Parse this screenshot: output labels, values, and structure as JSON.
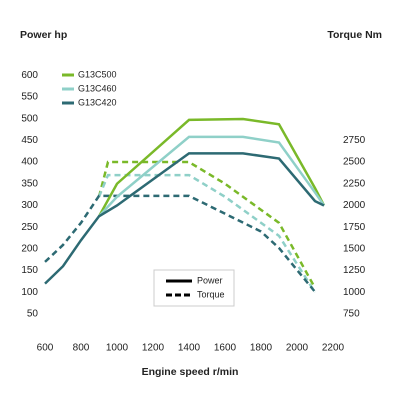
{
  "chart_data": {
    "type": "line",
    "y_title": "Power hp",
    "y2_title": "Torque Nm",
    "x_title": "Engine speed r/min",
    "xlim": [
      600,
      2200
    ],
    "xticks": [
      600,
      800,
      1000,
      1200,
      1400,
      1600,
      1800,
      2000,
      2200
    ],
    "ylim": [
      0,
      650
    ],
    "yticks": [
      50,
      100,
      150,
      200,
      250,
      300,
      350,
      400,
      450,
      500,
      550,
      600
    ],
    "y2lim": [
      500,
      3750
    ],
    "y2ticks": [
      750,
      1000,
      1250,
      1500,
      1750,
      2000,
      2250,
      2500,
      2750
    ],
    "style_labels": [
      "Power",
      "Torque"
    ],
    "series": [
      {
        "name": "G13C500",
        "color": "#7ab929",
        "x": [
          900,
          1000,
          1400,
          1700,
          1900,
          2100,
          2150
        ],
        "values": [
          275,
          350,
          497,
          499,
          487,
          340,
          300
        ],
        "torque_x": [
          900,
          950,
          1400,
          1600,
          1900,
          2100
        ],
        "torque": [
          2100,
          2500,
          2500,
          2250,
          1800,
          1050
        ]
      },
      {
        "name": "G13C460",
        "color": "#8fd0c8",
        "x": [
          900,
          1000,
          1400,
          1700,
          1900,
          2100,
          2150
        ],
        "values": [
          275,
          320,
          458,
          458,
          445,
          330,
          300
        ],
        "torque_x": [
          900,
          950,
          1400,
          1600,
          1900,
          2100
        ],
        "torque": [
          2100,
          2350,
          2350,
          2100,
          1650,
          1000
        ]
      },
      {
        "name": "G13C420",
        "color": "#2d6a73",
        "x": [
          600,
          700,
          800,
          900,
          1000,
          1200,
          1400,
          1700,
          1900,
          2100,
          2150
        ],
        "values": [
          120,
          160,
          220,
          275,
          300,
          360,
          420,
          420,
          408,
          310,
          300
        ],
        "torque_x": [
          600,
          700,
          800,
          900,
          1400,
          1800,
          1900,
          2100
        ],
        "torque": [
          1350,
          1545,
          1800,
          2110,
          2110,
          1700,
          1510,
          1005
        ]
      }
    ]
  }
}
